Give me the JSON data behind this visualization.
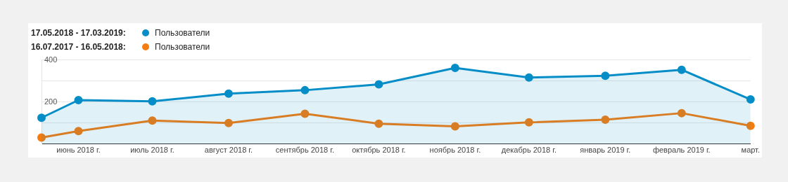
{
  "chart_data": {
    "type": "line",
    "x": [
      "2018-05-17",
      "2018-06-01",
      "2018-07-01",
      "2018-08-01",
      "2018-09-01",
      "2018-10-01",
      "2018-11-01",
      "2018-12-01",
      "2019-01-01",
      "2019-02-01",
      "2019-03-01"
    ],
    "series": [
      {
        "name": "Пользователи",
        "type": "area",
        "color": "#058dc7",
        "values": [
          125,
          209,
          203,
          240,
          256,
          284,
          362,
          316,
          325,
          353,
          212
        ]
      },
      {
        "name": "Пользователи",
        "type": "line",
        "color": "#f57c0e",
        "values": [
          31,
          62,
          112,
          100,
          144,
          97,
          84,
          103,
          116,
          147,
          87
        ]
      }
    ],
    "annotations": [
      "17.05.2018 - 17.03.2019:",
      "16.07.2017 - 16.05.2018:"
    ],
    "xlim": [
      "2018-05-17",
      "2019-03-01"
    ],
    "xticks": [
      {
        "value": "2018-06-01",
        "label": "июнь 2018 г."
      },
      {
        "value": "2018-07-01",
        "label": "июль 2018 г."
      },
      {
        "value": "2018-08-01",
        "label": "август 2018 г."
      },
      {
        "value": "2018-09-01",
        "label": "сентябрь 2018 г."
      },
      {
        "value": "2018-10-01",
        "label": "октябрь 2018 г."
      },
      {
        "value": "2018-11-01",
        "label": "ноябрь 2018 г."
      },
      {
        "value": "2018-12-01",
        "label": "декабрь 2018 г."
      },
      {
        "value": "2019-01-01",
        "label": "январь 2019 г."
      },
      {
        "value": "2019-02-01",
        "label": "февраль 2019 г."
      },
      {
        "value": "2019-03-01",
        "label": "март."
      }
    ],
    "ylim": [
      0,
      400
    ],
    "yticks": [
      {
        "value": 100,
        "label": null
      },
      200,
      {
        "value": 300,
        "label": null
      },
      400
    ],
    "grid": "y",
    "legend": "top left",
    "marker": "circle",
    "line_style": "solid"
  }
}
